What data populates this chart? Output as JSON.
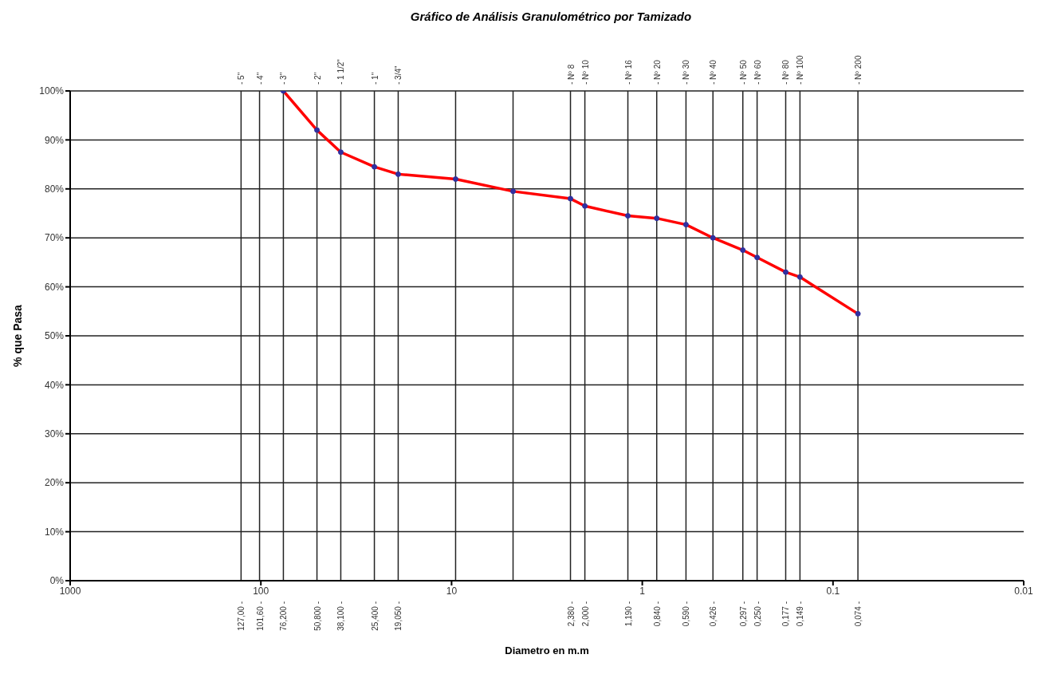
{
  "chart_data": {
    "type": "line",
    "title": "Gráfico de Análisis Granulométrico por Tamizado",
    "xlabel": "Diametro en m.m",
    "ylabel": "% que Pasa",
    "log": "x",
    "grid": "y",
    "marker": "circle",
    "line_style": "solid",
    "xlim": [
      1000,
      0.01
    ],
    "xticks": [
      1000,
      100,
      10,
      1,
      0.1,
      0.01
    ],
    "ylim": [
      0,
      100
    ],
    "yticks": [
      {
        "value": 0,
        "label": "0%"
      },
      {
        "value": 10,
        "label": "10%"
      },
      {
        "value": 20,
        "label": "20%"
      },
      {
        "value": 30,
        "label": "30%"
      },
      {
        "value": 40,
        "label": "40%"
      },
      {
        "value": 50,
        "label": "50%"
      },
      {
        "value": 60,
        "label": "60%"
      },
      {
        "value": 70,
        "label": "70%"
      },
      {
        "value": 80,
        "label": "80%"
      },
      {
        "value": 90,
        "label": "90%"
      },
      {
        "value": 100,
        "label": "100%"
      }
    ],
    "ref_lines": [
      {
        "axis": "x",
        "value": 127,
        "label": "127,00 -"
      },
      {
        "axis": "x",
        "value": 101.6,
        "label": "101,60 -"
      },
      {
        "axis": "x",
        "value": 76.2,
        "label": "76,200 -"
      },
      {
        "axis": "x",
        "value": 50.8,
        "label": "50,800 -"
      },
      {
        "axis": "x",
        "value": 38.1,
        "label": "38,100 -"
      },
      {
        "axis": "x",
        "value": 25.4,
        "label": "25,400 -"
      },
      {
        "axis": "x",
        "value": 19.05,
        "label": "19,050 -"
      },
      {
        "axis": "x",
        "value": 9.525,
        "label": null
      },
      {
        "axis": "x",
        "value": 4.76,
        "label": null
      },
      {
        "axis": "x",
        "value": 2.38,
        "label": "2,380 -"
      },
      {
        "axis": "x",
        "value": 2.0,
        "label": "2,000 -"
      },
      {
        "axis": "x",
        "value": 1.19,
        "label": "1,190 -"
      },
      {
        "axis": "x",
        "value": 0.84,
        "label": "0,840 -"
      },
      {
        "axis": "x",
        "value": 0.59,
        "label": "0,590 -"
      },
      {
        "axis": "x",
        "value": 0.426,
        "label": "0,426 -"
      },
      {
        "axis": "x",
        "value": 0.297,
        "label": "0,297 -"
      },
      {
        "axis": "x",
        "value": 0.25,
        "label": "0,250 -"
      },
      {
        "axis": "x",
        "value": 0.177,
        "label": "0,177 -"
      },
      {
        "axis": "x",
        "value": 0.149,
        "label": "0,149 -"
      },
      {
        "axis": "x",
        "value": 0.074,
        "label": "0,074 -"
      }
    ],
    "annotations": [
      {
        "text": "- 5\"",
        "x": 127,
        "y": 100
      },
      {
        "text": "- 4\"",
        "x": 101.6,
        "y": 100
      },
      {
        "text": "- 3\"",
        "x": 76.2,
        "y": 100
      },
      {
        "text": "- 2\"",
        "x": 50.8,
        "y": 100
      },
      {
        "text": "- 1 1/2\"",
        "x": 38.1,
        "y": 100
      },
      {
        "text": "- 1\"",
        "x": 25.4,
        "y": 100
      },
      {
        "text": "- 3/4\"",
        "x": 19.05,
        "y": 100
      },
      {
        "text": "- Nº 8",
        "x": 2.38,
        "y": 100
      },
      {
        "text": "- Nº 10",
        "x": 2.0,
        "y": 100
      },
      {
        "text": "- Nº 16",
        "x": 1.19,
        "y": 100
      },
      {
        "text": "- Nº 20",
        "x": 0.84,
        "y": 100
      },
      {
        "text": "- Nº 30",
        "x": 0.59,
        "y": 100
      },
      {
        "text": "- Nº 40",
        "x": 0.426,
        "y": 100
      },
      {
        "text": "- Nº 50",
        "x": 0.297,
        "y": 100
      },
      {
        "text": "- Nº 60",
        "x": 0.25,
        "y": 100
      },
      {
        "text": "- Nº 80",
        "x": 0.177,
        "y": 100
      },
      {
        "text": "- Nº 100",
        "x": 0.149,
        "y": 100
      },
      {
        "text": "- Nº 200",
        "x": 0.074,
        "y": 100
      }
    ],
    "series": [
      {
        "color": "#ff0000",
        "x": [
          76.2,
          50.8,
          38.1,
          25.4,
          19.05,
          9.525,
          4.76,
          2.38,
          2.0,
          1.19,
          0.84,
          0.59,
          0.426,
          0.297,
          0.25,
          0.177,
          0.149,
          0.074
        ],
        "values": [
          100,
          92,
          87.5,
          84.5,
          83,
          82,
          79.5,
          78,
          76.5,
          74.5,
          74,
          72.7,
          70,
          67.5,
          66,
          63,
          62,
          54.5
        ]
      }
    ]
  }
}
